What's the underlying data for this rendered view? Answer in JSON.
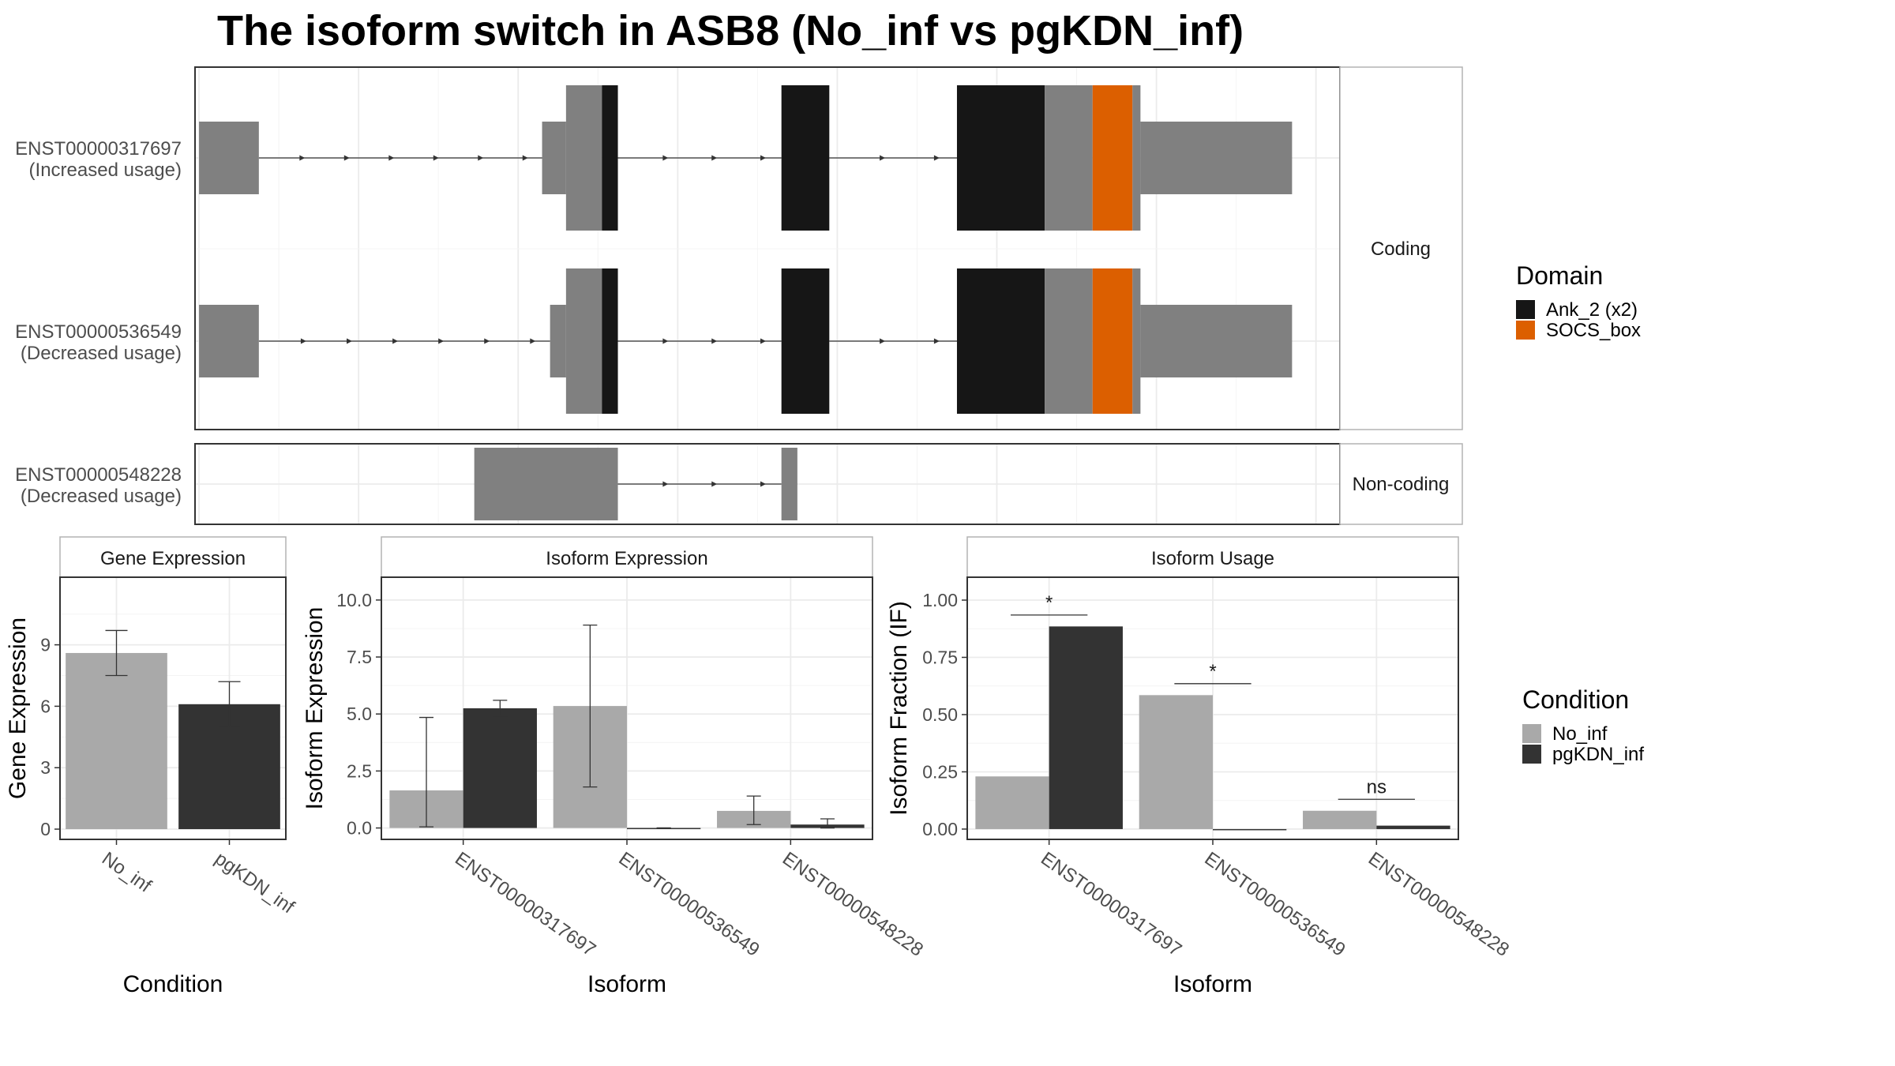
{
  "title": "The isoform switch in ASB8 (No_inf vs pgKDN_inf)",
  "colors": {
    "utr": "#808080",
    "ank": "#161616",
    "socs": "#dc5f00",
    "no_inf": "#a9a9a9",
    "pgkdn_inf": "#333333",
    "grid": "#ebebeb",
    "strip": "#ffffff",
    "panel_border": "#333333"
  },
  "structure": {
    "coding_label": "Coding",
    "noncoding_label": "Non-coding",
    "isoforms": [
      {
        "id": "ENST00000317697",
        "usage": "(Increased usage)",
        "group": "coding",
        "segments": [
          {
            "kind": "utr",
            "start": 0.0,
            "end": 7.5
          },
          {
            "kind": "utr_thin",
            "start": 43.0,
            "end": 46.0
          },
          {
            "kind": "utr",
            "start": 46.0,
            "end": 50.5
          },
          {
            "kind": "ank",
            "start": 50.5,
            "end": 52.5
          },
          {
            "kind": "ank",
            "start": 73.0,
            "end": 79.0
          },
          {
            "kind": "ank",
            "start": 95.0,
            "end": 106.0
          },
          {
            "kind": "utr",
            "start": 106.0,
            "end": 112.0
          },
          {
            "kind": "socs",
            "start": 112.0,
            "end": 117.0
          },
          {
            "kind": "utr",
            "start": 117.0,
            "end": 118.0
          },
          {
            "kind": "utr_thin",
            "start": 118.0,
            "end": 137.0
          }
        ],
        "introns": [
          [
            7.5,
            43.0
          ],
          [
            52.5,
            73.0
          ],
          [
            79.0,
            95.0
          ]
        ]
      },
      {
        "id": "ENST00000536549",
        "usage": "(Decreased usage)",
        "group": "coding",
        "segments": [
          {
            "kind": "utr",
            "start": 0.0,
            "end": 7.5
          },
          {
            "kind": "utr_thin",
            "start": 44.0,
            "end": 46.0
          },
          {
            "kind": "utr",
            "start": 46.0,
            "end": 50.5
          },
          {
            "kind": "ank",
            "start": 50.5,
            "end": 52.5
          },
          {
            "kind": "ank",
            "start": 73.0,
            "end": 79.0
          },
          {
            "kind": "ank",
            "start": 95.0,
            "end": 106.0
          },
          {
            "kind": "utr",
            "start": 106.0,
            "end": 112.0
          },
          {
            "kind": "socs",
            "start": 112.0,
            "end": 117.0
          },
          {
            "kind": "utr",
            "start": 117.0,
            "end": 118.0
          },
          {
            "kind": "utr_thin",
            "start": 118.0,
            "end": 137.0
          }
        ],
        "introns": [
          [
            7.5,
            44.0
          ],
          [
            52.5,
            73.0
          ],
          [
            79.0,
            95.0
          ]
        ]
      },
      {
        "id": "ENST00000548228",
        "usage": "(Decreased usage)",
        "group": "noncoding",
        "segments": [
          {
            "kind": "utr",
            "start": 34.5,
            "end": 52.5
          },
          {
            "kind": "utr",
            "start": 73.0,
            "end": 75.0
          }
        ],
        "introns": [
          [
            52.5,
            73.0
          ]
        ]
      }
    ],
    "x_domain": [
      -0.5,
      143.0
    ]
  },
  "domain_legend": {
    "title": "Domain",
    "items": [
      {
        "label": "Ank_2 (x2)",
        "color": "#161616"
      },
      {
        "label": "SOCS_box",
        "color": "#dc5f00"
      }
    ]
  },
  "condition_legend": {
    "title": "Condition",
    "items": [
      {
        "label": "No_inf",
        "color": "#a9a9a9"
      },
      {
        "label": "pgKDN_inf",
        "color": "#333333"
      }
    ]
  },
  "chart_data": [
    {
      "type": "bar",
      "title": "Gene Expression",
      "xlabel": "Condition",
      "ylabel": "Gene Expression",
      "categories": [
        "No_inf",
        "pgKDN_inf"
      ],
      "values": [
        8.6,
        6.1
      ],
      "errors": [
        [
          7.5,
          9.7
        ],
        [
          5.0,
          7.2
        ]
      ],
      "ylim": [
        -0.5,
        12.3
      ],
      "yticks": [
        0,
        3,
        6,
        9
      ],
      "ytick_labels": [
        "0",
        "3",
        "6",
        "9"
      ]
    },
    {
      "type": "bar",
      "title": "Isoform Expression",
      "xlabel": "Isoform",
      "ylabel": "Isoform Expression",
      "categories": [
        "ENST00000317697",
        "ENST00000536549",
        "ENST00000548228"
      ],
      "series": [
        {
          "name": "No_inf",
          "values": [
            1.65,
            5.35,
            0.75
          ],
          "errors": [
            [
              0.05,
              4.85
            ],
            [
              1.8,
              8.9
            ],
            [
              0.15,
              1.4
            ]
          ]
        },
        {
          "name": "pgKDN_inf",
          "values": [
            5.25,
            0.0,
            0.15
          ],
          "errors": [
            [
              4.9,
              5.6
            ],
            [
              0.0,
              0.0
            ],
            [
              0.0,
              0.4
            ]
          ]
        }
      ],
      "ylim": [
        -0.5,
        11.0
      ],
      "yticks": [
        0,
        2.5,
        5,
        7.5,
        10
      ],
      "ytick_labels": [
        "0.0",
        "2.5",
        "5.0",
        "7.5",
        "10.0"
      ]
    },
    {
      "type": "bar",
      "title": "Isoform Usage",
      "xlabel": "Isoform",
      "ylabel": "Isoform Fraction (IF)",
      "categories": [
        "ENST00000317697",
        "ENST00000536549",
        "ENST00000548228"
      ],
      "series": [
        {
          "name": "No_inf",
          "values": [
            0.23,
            0.585,
            0.08
          ]
        },
        {
          "name": "pgKDN_inf",
          "values": [
            0.885,
            0.0,
            0.015
          ]
        }
      ],
      "significance": [
        {
          "label": "*",
          "y": 0.935
        },
        {
          "label": "*",
          "y": 0.635
        },
        {
          "label": "ns",
          "y": 0.13
        }
      ],
      "ylim": [
        -0.045,
        1.1
      ],
      "yticks": [
        0,
        0.25,
        0.5,
        0.75,
        1.0
      ],
      "ytick_labels": [
        "0.00",
        "0.25",
        "0.50",
        "0.75",
        "1.00"
      ]
    }
  ]
}
